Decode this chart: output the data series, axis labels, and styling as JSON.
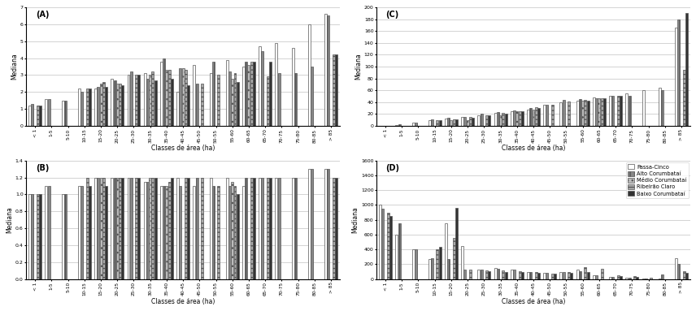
{
  "categories": [
    "< 1",
    "1-5",
    "5-10",
    "10-15",
    "15-20",
    "20-25",
    "25-30",
    "30-35",
    "35-40",
    "40-45",
    "45-50",
    "50-55",
    "55-60",
    "60-65",
    "65-70",
    "70-75",
    "75-80",
    "80-85",
    "> 85"
  ],
  "series_names": [
    "Passa-Cinco",
    "Alto Corumbataí",
    "Médio Corumbataí",
    "Ribeirão Claro",
    "Baixo Corumbataí"
  ],
  "A": [
    [
      1.2,
      1.6,
      1.5,
      2.2,
      2.2,
      2.8,
      3.0,
      3.1,
      3.8,
      2.0,
      3.6,
      3.1,
      3.9,
      3.5,
      4.7,
      4.9,
      4.6,
      6.0,
      6.6
    ],
    [
      1.3,
      1.6,
      1.5,
      2.0,
      2.3,
      2.7,
      3.2,
      2.8,
      4.0,
      3.4,
      2.5,
      3.8,
      3.2,
      3.8,
      4.4,
      3.1,
      3.1,
      3.5,
      6.5
    ],
    [
      null,
      null,
      null,
      null,
      2.5,
      2.5,
      null,
      3.0,
      3.3,
      3.4,
      null,
      null,
      2.8,
      3.6,
      null,
      null,
      null,
      null,
      null
    ],
    [
      1.2,
      null,
      null,
      2.2,
      2.6,
      2.5,
      3.0,
      3.2,
      3.3,
      3.3,
      2.5,
      3.0,
      3.1,
      3.8,
      2.9,
      null,
      null,
      null,
      4.2
    ],
    [
      1.2,
      null,
      null,
      2.2,
      2.3,
      2.4,
      3.0,
      2.7,
      2.8,
      2.4,
      null,
      null,
      2.6,
      3.8,
      3.8,
      null,
      null,
      null,
      4.2
    ]
  ],
  "B": [
    [
      1.0,
      1.1,
      1.0,
      1.1,
      1.2,
      1.2,
      1.2,
      1.15,
      1.1,
      1.2,
      1.1,
      1.2,
      1.2,
      1.1,
      1.2,
      1.2,
      1.2,
      1.3,
      1.3
    ],
    [
      1.0,
      1.1,
      1.0,
      1.1,
      1.2,
      1.2,
      1.2,
      1.15,
      1.1,
      1.1,
      1.2,
      1.1,
      1.1,
      1.2,
      1.2,
      1.2,
      1.2,
      1.3,
      1.3
    ],
    [
      null,
      null,
      null,
      null,
      1.2,
      1.2,
      null,
      1.2,
      1.1,
      null,
      null,
      null,
      1.15,
      null,
      null,
      null,
      null,
      null,
      null
    ],
    [
      1.0,
      null,
      null,
      1.2,
      1.2,
      1.2,
      1.2,
      1.2,
      1.15,
      1.2,
      1.2,
      1.1,
      1.1,
      1.2,
      1.2,
      null,
      null,
      null,
      1.2
    ],
    [
      1.0,
      null,
      null,
      1.1,
      1.1,
      1.2,
      1.2,
      1.2,
      1.2,
      1.2,
      null,
      null,
      1.0,
      1.2,
      1.2,
      null,
      null,
      null,
      1.2
    ]
  ],
  "C": [
    [
      0.5,
      1.0,
      5.0,
      10.0,
      12.0,
      15.0,
      18.0,
      22.0,
      25.0,
      27.0,
      35.0,
      40.0,
      42.0,
      48.0,
      50.0,
      55.0,
      60.0,
      65.0,
      165.0
    ],
    [
      0.5,
      2.0,
      5.5,
      10.5,
      13.0,
      15.5,
      20.0,
      23.0,
      26.0,
      30.0,
      36.0,
      44.0,
      45.0,
      46.0,
      50.0,
      50.0,
      null,
      60.0,
      180.0
    ],
    [
      null,
      null,
      null,
      null,
      9.0,
      10.0,
      null,
      18.0,
      25.0,
      28.0,
      null,
      null,
      42.0,
      46.0,
      null,
      null,
      null,
      null,
      null
    ],
    [
      0.5,
      null,
      null,
      9.0,
      11.0,
      15.0,
      18.0,
      22.0,
      24.0,
      32.0,
      35.0,
      41.0,
      44.0,
      47.0,
      50.0,
      null,
      null,
      null,
      95.0
    ],
    [
      0.5,
      null,
      null,
      9.0,
      11.0,
      14.0,
      18.0,
      21.0,
      24.0,
      30.0,
      null,
      null,
      42.0,
      47.0,
      50.0,
      null,
      null,
      null,
      190.0
    ]
  ],
  "D": [
    [
      1000.0,
      600.0,
      400.0,
      270.0,
      750.0,
      450.0,
      130.0,
      150.0,
      130.0,
      100.0,
      80.0,
      100.0,
      130.0,
      50.0,
      30.0,
      20.0,
      10.0,
      10.0,
      280.0
    ],
    [
      950.0,
      750.0,
      400.0,
      280.0,
      270.0,
      130.0,
      130.0,
      140.0,
      130.0,
      90.0,
      80.0,
      90.0,
      110.0,
      50.0,
      30.0,
      20.0,
      10.0,
      60.0,
      200.0
    ],
    [
      null,
      null,
      null,
      null,
      null,
      null,
      null,
      null,
      null,
      null,
      null,
      null,
      null,
      null,
      null,
      null,
      null,
      null,
      null
    ],
    [
      900.0,
      null,
      null,
      400.0,
      550.0,
      130.0,
      120.0,
      120.0,
      110.0,
      90.0,
      75.0,
      90.0,
      160.0,
      140.0,
      50.0,
      40.0,
      20.0,
      null,
      110.0
    ],
    [
      850.0,
      null,
      null,
      430.0,
      960.0,
      null,
      110.0,
      100.0,
      100.0,
      80.0,
      70.0,
      80.0,
      100.0,
      null,
      40.0,
      30.0,
      null,
      null,
      80.0
    ]
  ],
  "ylabel": "Mediana",
  "xlabel": "Classes de área (ha)",
  "ylim_A": [
    0,
    7.0
  ],
  "ylim_B": [
    0,
    1.4
  ],
  "ylim_C": [
    0,
    200.0
  ],
  "ylim_D": [
    0,
    1600
  ],
  "yticks_A": [
    0.0,
    1.0,
    2.0,
    3.0,
    4.0,
    5.0,
    6.0,
    7.0
  ],
  "yticks_B": [
    0.0,
    0.2,
    0.4,
    0.6,
    0.8,
    1.0,
    1.2,
    1.4
  ],
  "yticks_C": [
    0.0,
    20.0,
    40.0,
    60.0,
    80.0,
    100.0,
    120.0,
    140.0,
    160.0,
    180.0,
    200.0
  ],
  "yticks_D": [
    0,
    200,
    400,
    600,
    800,
    1000,
    1200,
    1400,
    1600
  ],
  "panel_labels": [
    "(A)",
    "(B)",
    "(C)",
    "(D)"
  ],
  "bar_colors": [
    "white",
    "#888888",
    "#bbbbbb",
    "#aaaaaa",
    "#333333"
  ],
  "bar_hatches": [
    "",
    "|||",
    "...",
    "---",
    ""
  ]
}
